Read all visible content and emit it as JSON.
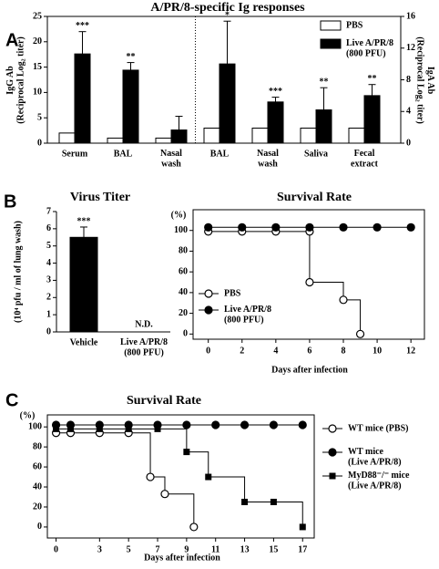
{
  "chart_data": [
    {
      "panel": "A",
      "type": "bar",
      "title": "A/PR/8-specific Ig responses",
      "ylabel": "IgG Ab\n(Reciprocal Log₂ titer)",
      "y2label": "IgA Ab\n(Reciprocal Log₂ titer)",
      "categories": [
        "Serum",
        "BAL",
        "Nasal\nwash",
        "BAL",
        "Nasal\nwash",
        "Saliva",
        "Fecal\nextract"
      ],
      "category_axis": [
        "y",
        "y",
        "y",
        "y2",
        "y2",
        "y2",
        "y2"
      ],
      "series": [
        {
          "name": "PBS",
          "color": "#ffffff",
          "values": [
            2,
            1,
            1,
            1.9,
            1.9,
            1.9,
            1.9
          ]
        },
        {
          "name": "Live A/PR/8\n(800 PFU)",
          "color": "#000000",
          "values": [
            17.6,
            14.4,
            2.6,
            10,
            5.2,
            4.2,
            6
          ],
          "errors": [
            4.4,
            1.5,
            2.7,
            5.4,
            0.6,
            2.8,
            1.4
          ],
          "significance": [
            "***",
            "**",
            null,
            "*",
            "***",
            "**",
            "**"
          ]
        }
      ],
      "ylim": [
        0,
        25
      ],
      "yticks": [
        0,
        5,
        10,
        15,
        20,
        25
      ],
      "y2lim": [
        0,
        16
      ],
      "y2ticks": [
        0,
        4,
        8,
        12,
        16
      ],
      "legend": "upper right"
    },
    {
      "panel": "B",
      "type": "bar",
      "title": "Virus Titer",
      "ylabel": "(10⁴ pfu / ml of lung wash)",
      "categories": [
        "Vehicle",
        "Live A/PR/8\n(800 PFU)"
      ],
      "values": [
        5.5,
        null
      ],
      "errors": [
        0.6,
        null
      ],
      "significance": [
        "***",
        null
      ],
      "value_labels": [
        null,
        "N.D."
      ],
      "color": "#000000",
      "ylim": [
        0,
        7
      ],
      "yticks": [
        0,
        1,
        2,
        3,
        4,
        5,
        6,
        7
      ]
    },
    {
      "type": "line",
      "title": "Survival Rate",
      "ylabel": "(%)",
      "xlabel": "Days after infection",
      "step": "post",
      "series": [
        {
          "name": "PBS",
          "color": "#000000",
          "marker": "open-circle",
          "x": [
            0,
            2,
            4,
            6,
            6,
            8,
            9
          ],
          "values": [
            99,
            99,
            99,
            99,
            50,
            33,
            0
          ]
        },
        {
          "name": "Live A/PR/8\n(800 PFU)",
          "color": "#000000",
          "marker": "filled-circle",
          "x": [
            0,
            2,
            4,
            6,
            8,
            10,
            12
          ],
          "values": [
            103,
            103,
            103,
            103,
            103,
            103,
            103
          ]
        }
      ],
      "xlim": [
        -0.9,
        12.8
      ],
      "xticks": [
        0,
        2,
        4,
        6,
        8,
        10,
        12
      ],
      "ylim": [
        -5,
        120
      ],
      "yticks": [
        0,
        20,
        40,
        60,
        80,
        100
      ],
      "legend": "lower left"
    },
    {
      "panel": "C",
      "type": "line",
      "title": "Survival Rate",
      "ylabel": "(%)",
      "xlabel": "Days after infection",
      "step": "post",
      "series": [
        {
          "name": "WT mice (PBS)",
          "color": "#000000",
          "marker": "open-circle",
          "x": [
            0,
            1,
            3,
            5,
            6.5,
            7.5,
            9.5
          ],
          "values": [
            94,
            94,
            94,
            94,
            50,
            33,
            0
          ]
        },
        {
          "name": "WT mice\n(Live A/PR/8)",
          "color": "#000000",
          "marker": "filled-circle",
          "x": [
            0,
            1,
            3,
            5,
            7,
            9,
            11,
            13,
            15,
            17
          ],
          "values": [
            102,
            102,
            102,
            102,
            102,
            102,
            102,
            102,
            102,
            102
          ]
        },
        {
          "name": "MyD88⁻/⁻ mice\n(Live A/PR/8)",
          "color": "#000000",
          "marker": "square",
          "x": [
            0,
            1,
            3,
            5,
            7,
            9,
            10.5,
            13,
            15,
            17
          ],
          "values": [
            98,
            98,
            98,
            98,
            98,
            75,
            50,
            25,
            25,
            0
          ]
        }
      ],
      "xlim": [
        -0.6,
        17.8
      ],
      "xticks": [
        0,
        3,
        5,
        7,
        9,
        11,
        13,
        15,
        17
      ],
      "ylim": [
        -11,
        112
      ],
      "yticks": [
        0,
        20,
        40,
        60,
        80,
        100
      ],
      "legend": "right"
    }
  ]
}
